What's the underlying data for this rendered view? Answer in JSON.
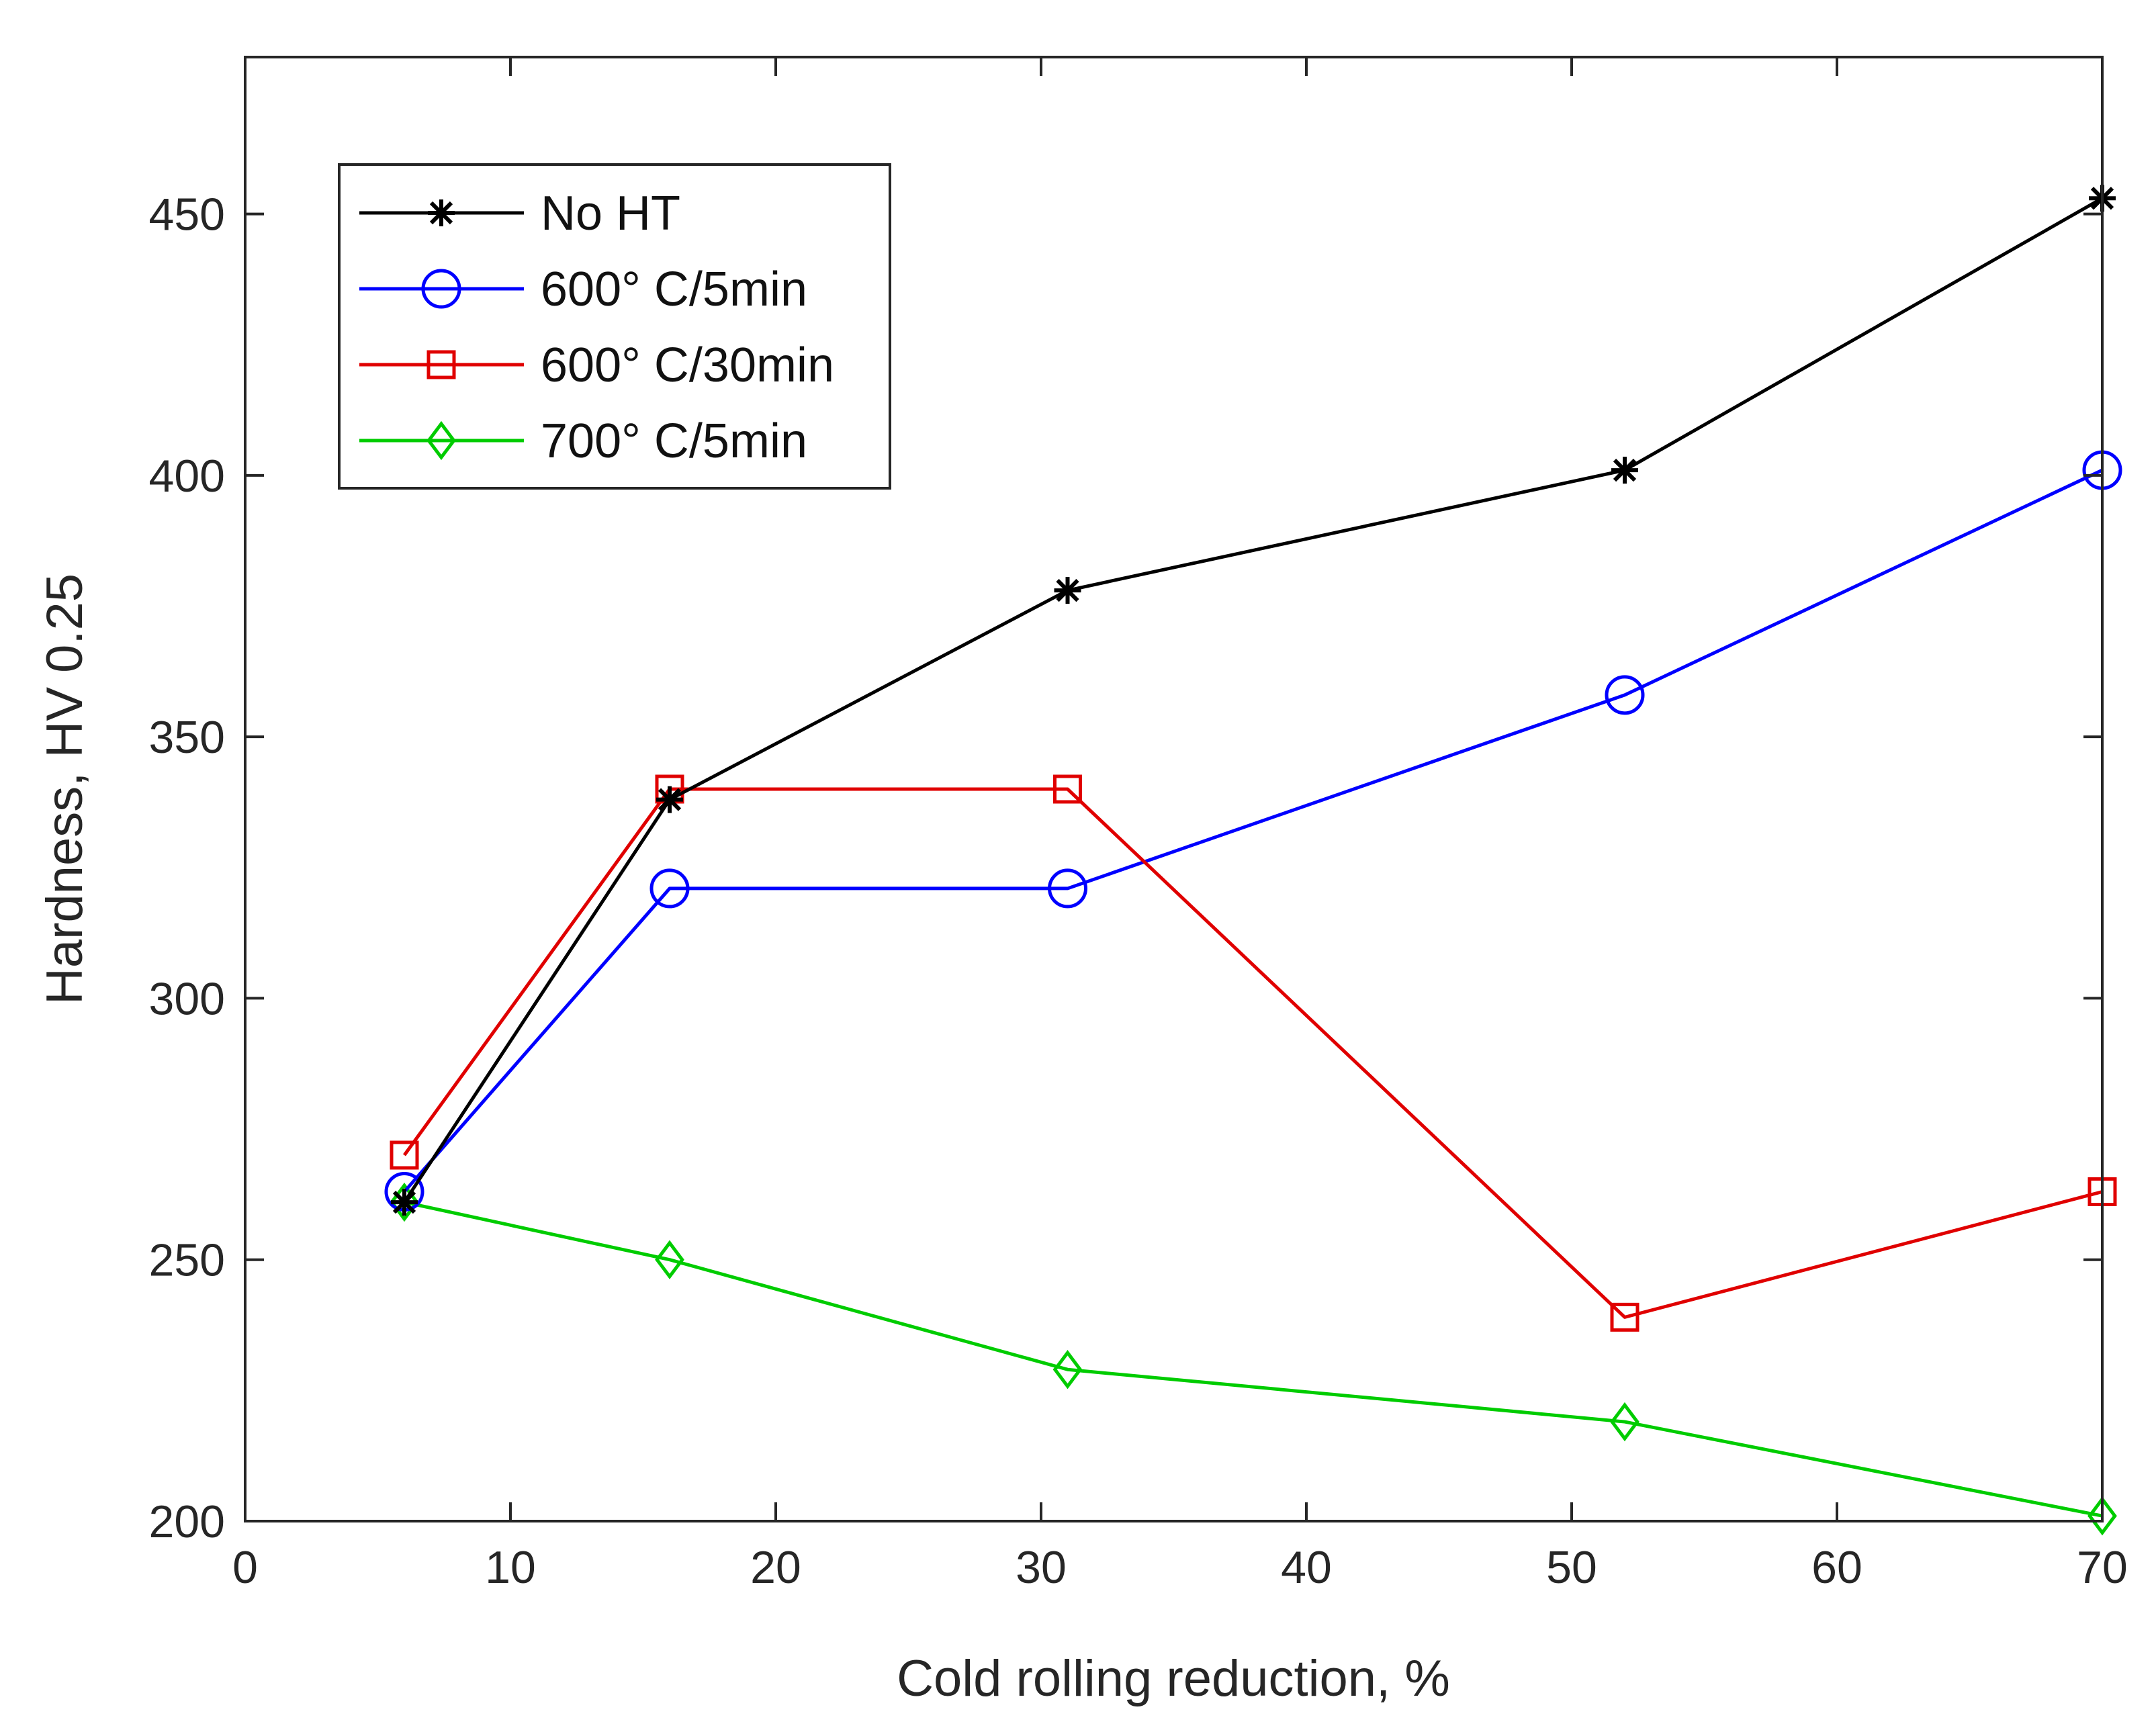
{
  "chart_data": {
    "type": "line",
    "title": "",
    "xlabel": "Cold rolling reduction, %",
    "ylabel": "Hardness, HV  0.25",
    "xlim": [
      0,
      70
    ],
    "ylim": [
      200,
      480
    ],
    "xticks": [
      0,
      10,
      20,
      30,
      40,
      50,
      60,
      70
    ],
    "yticks": [
      200,
      250,
      300,
      350,
      400,
      450
    ],
    "grid": false,
    "legend_position": "top-left",
    "x": [
      6,
      16,
      31,
      52,
      70
    ],
    "series": [
      {
        "name": "No HT",
        "color": "#000000",
        "marker": "star",
        "values": [
          261,
          338,
          378,
          401,
          453
        ]
      },
      {
        "name": "600° C/5min",
        "color": "#0000ff",
        "marker": "circle",
        "values": [
          263,
          321,
          321,
          358,
          401
        ]
      },
      {
        "name": "600° C/30min",
        "color": "#e00000",
        "marker": "square",
        "values": [
          270,
          340,
          340,
          239,
          263
        ]
      },
      {
        "name": "700° C/5min",
        "color": "#00cc00",
        "marker": "diamond",
        "values": [
          261,
          250,
          229,
          219,
          201
        ]
      }
    ]
  }
}
